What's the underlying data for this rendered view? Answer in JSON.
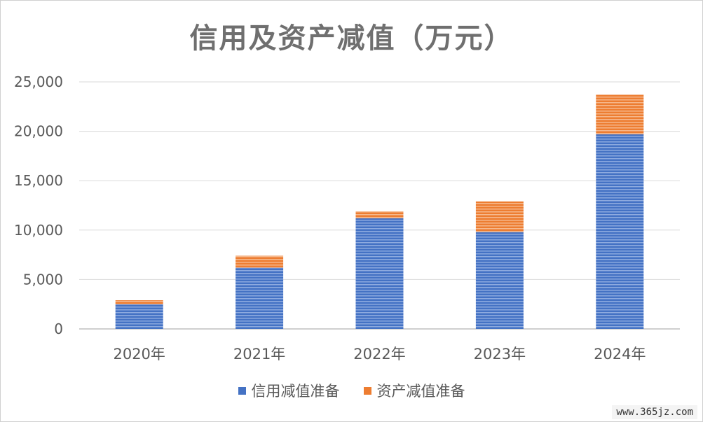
{
  "chart_data": {
    "type": "bar",
    "stacked": true,
    "title": "信用及资产减值（万元）",
    "categories": [
      "2020年",
      "2021年",
      "2022年",
      "2023年",
      "2024年"
    ],
    "series": [
      {
        "name": "信用减值准备",
        "values": [
          2500,
          6200,
          11200,
          9800,
          19700
        ],
        "color": "#4472c4"
      },
      {
        "name": "资产减值准备",
        "values": [
          400,
          1200,
          700,
          3100,
          4000
        ],
        "color": "#ed7d31"
      }
    ],
    "ylim": [
      0,
      25000
    ],
    "yticks": [
      0,
      5000,
      10000,
      15000,
      20000,
      25000
    ],
    "ytick_labels": [
      "0",
      "5,000",
      "10,000",
      "15,000",
      "20,000",
      "25,000"
    ],
    "grid": true,
    "legend_position": "bottom"
  },
  "watermark": "www.365jz.com"
}
